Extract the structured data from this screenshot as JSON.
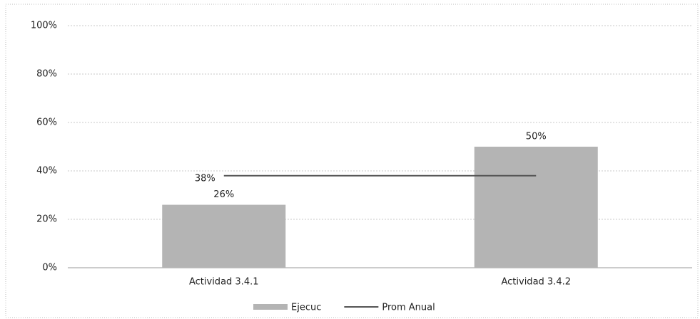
{
  "chart_data": {
    "type": "bar",
    "categories": [
      "Actividad 3.4.1",
      "Actividad 3.4.2"
    ],
    "series": [
      {
        "name": "Ejecuc",
        "type": "bar",
        "color": "#b4b4b4",
        "values": [
          26,
          50
        ],
        "value_labels": [
          "26%",
          "50%"
        ]
      },
      {
        "name": "Prom Anual",
        "type": "line",
        "color": "#555555",
        "values": [
          38,
          38
        ],
        "value_labels": [
          "38%",
          null
        ]
      }
    ],
    "ylim": [
      0,
      100
    ],
    "yticks": [
      {
        "value": 0,
        "label": "0%"
      },
      {
        "value": 20,
        "label": "20%"
      },
      {
        "value": 40,
        "label": "40%"
      },
      {
        "value": 60,
        "label": "60%"
      },
      {
        "value": 80,
        "label": "80%"
      },
      {
        "value": 100,
        "label": "100%"
      }
    ],
    "grid": true,
    "legend": "bottom"
  }
}
